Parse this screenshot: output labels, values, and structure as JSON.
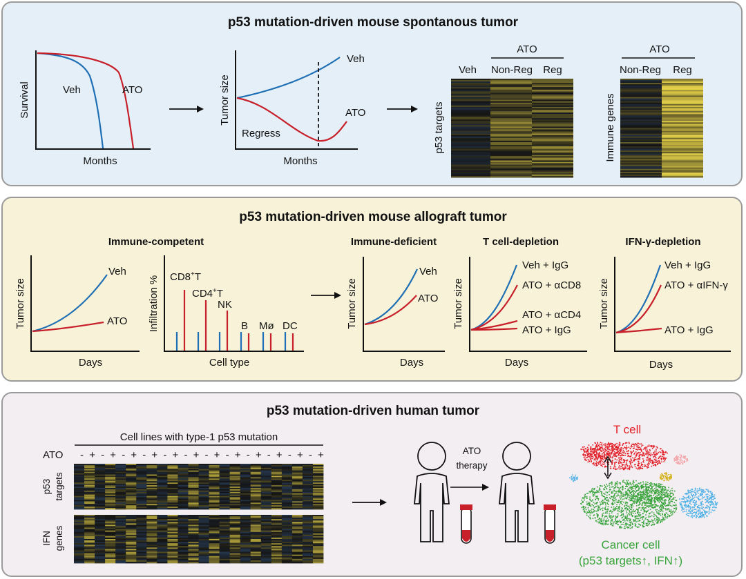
{
  "colors": {
    "veh_blue": "#1f6fb4",
    "ato_red": "#c8202a",
    "heat_yellow": "#e8d44a",
    "heat_dark": "#141414",
    "tsne_red": "#e21f26",
    "tsne_green": "#3aa43c",
    "tsne_blue": "#4fb0e6",
    "tsne_yellow": "#d4b21c",
    "tsne_pink": "#f3a3a8",
    "panel1_bg": "#e4eff8",
    "panel2_bg": "#f7f2d8",
    "panel3_bg": "#f3eef2"
  },
  "panel1": {
    "title": "p53 mutation-driven mouse spontanous tumor",
    "survival": {
      "ylabel": "Survival",
      "xlabel": "Months",
      "veh": "Veh",
      "ato": "ATO"
    },
    "tumor": {
      "ylabel": "Tumor size",
      "xlabel": "Months",
      "veh": "Veh",
      "ato": "ATO",
      "regress": "Regress"
    },
    "heat1": {
      "group": "ATO",
      "col_veh": "Veh",
      "col_nonreg": "Non-Reg",
      "col_reg": "Reg",
      "ylabel": "p53 targets"
    },
    "heat2": {
      "group": "ATO",
      "col_nonreg": "Non-Reg",
      "col_reg": "Reg",
      "ylabel": "Immune genes"
    }
  },
  "panel2": {
    "title": "p53 mutation-driven mouse allograft tumor",
    "competent": {
      "title": "Immune-competent",
      "tumor": {
        "ylabel": "Tumor size",
        "xlabel": "Days",
        "veh": "Veh",
        "ato": "ATO"
      },
      "infiltration": {
        "ylabel": "Infiltration %",
        "xlabel": "Cell type",
        "cells": [
          {
            "base": "CD8",
            "sup": "+",
            "tail": "T"
          },
          {
            "base": "CD4",
            "sup": "+",
            "tail": "T"
          },
          {
            "base": "NK",
            "sup": "",
            "tail": ""
          },
          {
            "base": "B",
            "sup": "",
            "tail": ""
          },
          {
            "base": "Mø",
            "sup": "",
            "tail": ""
          },
          {
            "base": "DC",
            "sup": "",
            "tail": ""
          }
        ]
      }
    },
    "deficient": {
      "title": "Immune-deficient",
      "ylabel": "Tumor size",
      "xlabel": "Days",
      "veh": "Veh",
      "ato": "ATO"
    },
    "tcell": {
      "title": "T cell-depletion",
      "ylabel": "Tumor size",
      "xlabel": "Days",
      "l1": "Veh + IgG",
      "l2": "ATO + αCD8",
      "l3": "ATO + αCD4",
      "l4": "ATO + IgG"
    },
    "ifn": {
      "title": "IFN-γ-depletion",
      "ylabel": "Tumor size",
      "xlabel": "Days",
      "l1": "Veh + IgG",
      "l2": "ATO + αIFN-γ",
      "l3": "ATO + IgG"
    }
  },
  "panel3": {
    "title": "p53 mutation-driven human tumor",
    "heat_title": "Cell lines with type-1 p53 mutation",
    "ato_label": "ATO",
    "signs": [
      "-",
      "+",
      "-",
      "+",
      "-",
      "+",
      "-",
      "+",
      "-",
      "+",
      "-",
      "+",
      "-",
      "+",
      "-",
      "+",
      "-",
      "+",
      "-",
      "+",
      "-",
      "+",
      "-",
      "+"
    ],
    "row1_l1": "p53",
    "row1_l2": "targets",
    "row2_l1": "IFN",
    "row2_l2": "genes",
    "therapy_l1": "ATO",
    "therapy_l2": "therapy",
    "tcell": "T cell",
    "cancer_l1": "Cancer cell",
    "cancer_l2": "(p53 targets↑, IFN↑)"
  }
}
